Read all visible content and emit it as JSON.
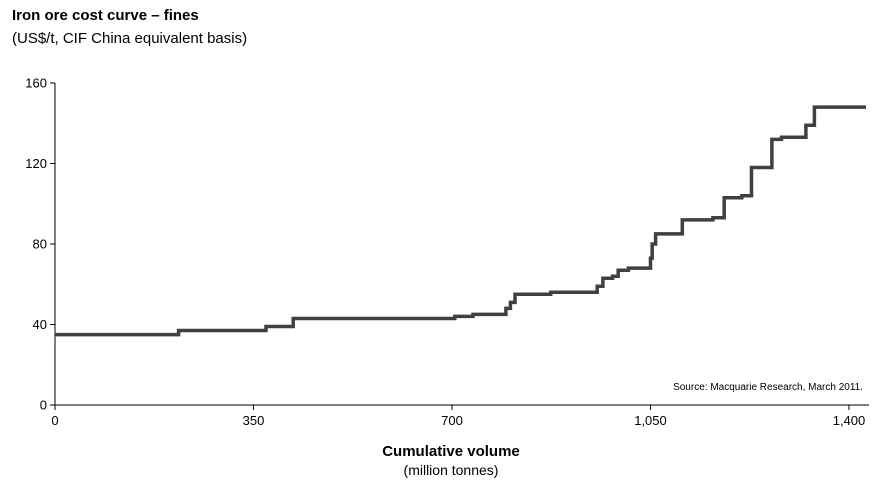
{
  "chart_data": {
    "type": "line",
    "title": "Iron ore cost curve – fines",
    "subtitle": "(US$/t, CIF China equivalent basis)",
    "xlabel": "Cumulative volume",
    "xlabel_sub": "(million tonnes)",
    "ylabel": "",
    "xlim": [
      0,
      1430
    ],
    "ylim": [
      0,
      160
    ],
    "x_ticks": [
      0,
      350,
      700,
      1050,
      1400
    ],
    "x_tick_labels": [
      "0",
      "350",
      "700",
      "1,050",
      "1,400"
    ],
    "y_ticks": [
      0,
      40,
      80,
      120,
      160
    ],
    "y_tick_labels": [
      "0",
      "40",
      "80",
      "120",
      "160"
    ],
    "step_style": "step",
    "grid": false,
    "source": "Source:  Macquarie Research, March 2011.",
    "series": [
      {
        "color": "#404040",
        "points": [
          [
            0,
            35
          ],
          [
            218,
            37
          ],
          [
            372,
            39
          ],
          [
            420,
            43
          ],
          [
            705,
            44
          ],
          [
            737,
            45
          ],
          [
            795,
            48
          ],
          [
            803,
            51
          ],
          [
            811,
            55
          ],
          [
            874,
            56
          ],
          [
            956,
            59
          ],
          [
            966,
            63
          ],
          [
            983,
            64
          ],
          [
            993,
            67
          ],
          [
            1011,
            68
          ],
          [
            1050,
            73
          ],
          [
            1053,
            80
          ],
          [
            1059,
            85
          ],
          [
            1106,
            92
          ],
          [
            1160,
            93
          ],
          [
            1180,
            103
          ],
          [
            1211,
            104
          ],
          [
            1228,
            118
          ],
          [
            1264,
            132
          ],
          [
            1281,
            133
          ],
          [
            1324,
            139
          ],
          [
            1339,
            148
          ],
          [
            1430,
            148
          ]
        ]
      }
    ]
  }
}
